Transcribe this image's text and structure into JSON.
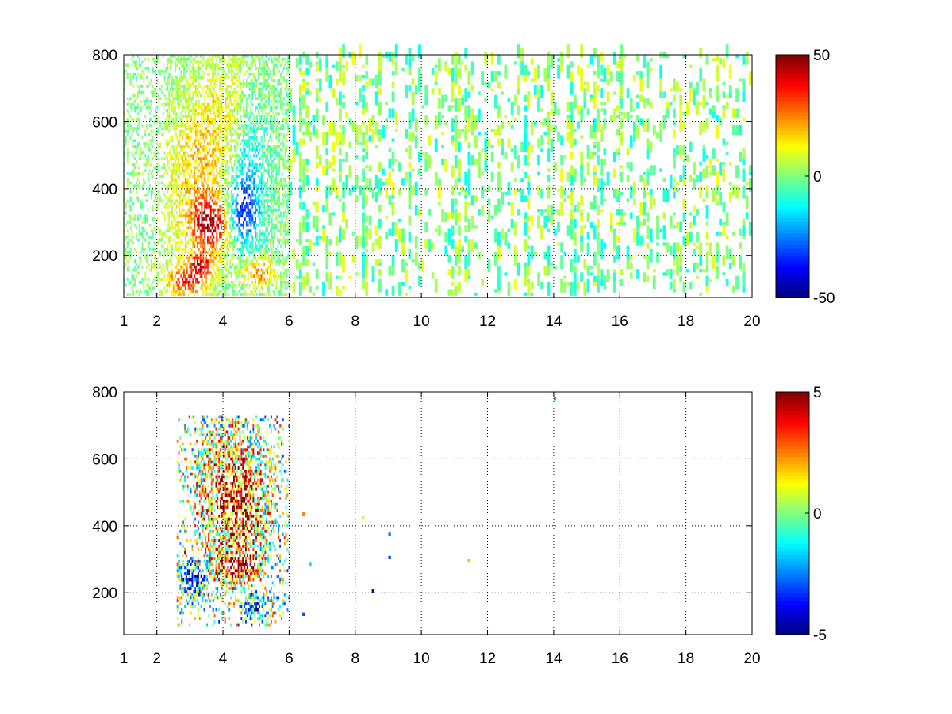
{
  "chart_data": [
    {
      "type": "heatmap",
      "title": "",
      "xlabel": "",
      "ylabel": "",
      "xlim": [
        1,
        20
      ],
      "ylim": [
        75,
        800
      ],
      "x_ticks": [
        "1",
        "2",
        "4",
        "6",
        "8",
        "10",
        "12",
        "14",
        "16",
        "18",
        "20"
      ],
      "y_ticks": [
        "200",
        "400",
        "600",
        "800"
      ],
      "grid": true,
      "colormap": "jet",
      "colorbar": {
        "range": [
          -50,
          50
        ],
        "ticks": [
          "-50",
          "0",
          "50"
        ]
      },
      "blobs": [
        {
          "x": 3.6,
          "y": 290,
          "sx": 0.4,
          "sy": 55,
          "v": 42
        },
        {
          "x": 3.3,
          "y": 170,
          "sx": 0.3,
          "sy": 25,
          "v": 32
        },
        {
          "x": 2.9,
          "y": 120,
          "sx": 0.45,
          "sy": 30,
          "v": 30
        },
        {
          "x": 3.4,
          "y": 480,
          "sx": 0.45,
          "sy": 160,
          "v": 18
        },
        {
          "x": 2.6,
          "y": 380,
          "sx": 0.4,
          "sy": 180,
          "v": 8
        },
        {
          "x": 4.6,
          "y": 330,
          "sx": 0.3,
          "sy": 60,
          "v": -30
        },
        {
          "x": 4.8,
          "y": 440,
          "sx": 0.35,
          "sy": 140,
          "v": -14
        },
        {
          "x": 5.1,
          "y": 150,
          "sx": 0.35,
          "sy": 30,
          "v": 25
        },
        {
          "x": 4.2,
          "y": 640,
          "sx": 0.4,
          "sy": 120,
          "v": 10
        }
      ],
      "cluster": {
        "x": [
          1.0,
          6.0
        ],
        "y": [
          80,
          800
        ],
        "density": 0.55,
        "noise": 8
      },
      "sparse": {
        "x": [
          6.0,
          20.0
        ],
        "y": [
          80,
          800
        ],
        "density": 0.12,
        "v_range": [
          -12,
          12
        ]
      }
    },
    {
      "type": "heatmap",
      "title": "",
      "xlabel": "",
      "ylabel": "",
      "xlim": [
        1,
        20
      ],
      "ylim": [
        75,
        800
      ],
      "x_ticks": [
        "1",
        "2",
        "4",
        "6",
        "8",
        "10",
        "12",
        "14",
        "16",
        "18",
        "20"
      ],
      "y_ticks": [
        "200",
        "400",
        "600",
        "800"
      ],
      "grid": true,
      "colormap": "jet",
      "colorbar": {
        "range": [
          -5,
          5
        ],
        "ticks": [
          "-5",
          "0",
          "5"
        ]
      },
      "blobs": [
        {
          "x": 4.4,
          "y": 280,
          "sx": 0.45,
          "sy": 25,
          "v": 5
        },
        {
          "x": 4.5,
          "y": 460,
          "sx": 0.5,
          "sy": 110,
          "v": 3.5
        },
        {
          "x": 3.1,
          "y": 240,
          "sx": 0.2,
          "sy": 30,
          "v": -5
        },
        {
          "x": 3.8,
          "y": 520,
          "sx": 0.4,
          "sy": 120,
          "v": 1.5
        },
        {
          "x": 5.0,
          "y": 160,
          "sx": 0.3,
          "sy": 25,
          "v": -2.5
        }
      ],
      "cluster": {
        "x": [
          2.6,
          6.0
        ],
        "y": [
          100,
          730
        ],
        "density": 0.6,
        "noise": 3.5
      },
      "points": [
        {
          "x": 14.0,
          "y": 775,
          "v": -2
        },
        {
          "x": 11.4,
          "y": 290,
          "v": 2
        },
        {
          "x": 9.0,
          "y": 300,
          "v": -3
        },
        {
          "x": 9.0,
          "y": 370,
          "v": -2.5
        },
        {
          "x": 8.5,
          "y": 200,
          "v": -4
        },
        {
          "x": 8.2,
          "y": 420,
          "v": 0.5
        },
        {
          "x": 6.6,
          "y": 280,
          "v": -1.5
        },
        {
          "x": 6.4,
          "y": 430,
          "v": 2.5
        },
        {
          "x": 6.4,
          "y": 130,
          "v": -3
        }
      ]
    }
  ]
}
